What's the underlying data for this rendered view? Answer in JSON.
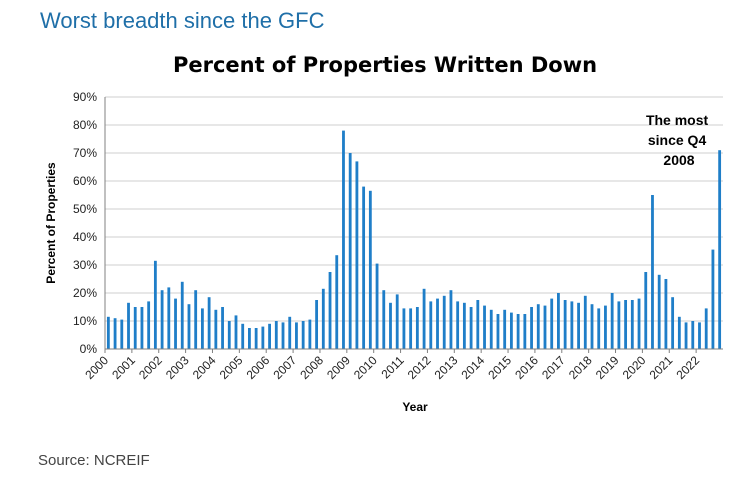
{
  "headline": "Worst breadth since the GFC",
  "source": "Source: NCREIF",
  "chart_data": {
    "type": "bar",
    "title": "Percent of Properties Written Down",
    "xlabel": "Year",
    "ylabel": "Percent of Properties",
    "ylim": [
      0,
      90
    ],
    "y_ticks": [
      "0%",
      "10%",
      "20%",
      "30%",
      "40%",
      "50%",
      "60%",
      "70%",
      "80%",
      "90%"
    ],
    "x_tick_labels": [
      "2000",
      "2001",
      "2002",
      "2003",
      "2004",
      "2005",
      "2006",
      "2007",
      "2008",
      "2009",
      "2010",
      "2011",
      "2012",
      "2013",
      "2014",
      "2015",
      "2016",
      "2017",
      "2018",
      "2019",
      "2020",
      "2021",
      "2022"
    ],
    "grid": true,
    "bar_color": "#1f7ec8",
    "annotation": [
      "The most",
      "since Q4",
      "2008"
    ],
    "categories": [
      "2000 Q1",
      "2000 Q2",
      "2000 Q3",
      "2000 Q4",
      "2001 Q1",
      "2001 Q2",
      "2001 Q3",
      "2001 Q4",
      "2002 Q1",
      "2002 Q2",
      "2002 Q3",
      "2002 Q4",
      "2003 Q1",
      "2003 Q2",
      "2003 Q3",
      "2003 Q4",
      "2004 Q1",
      "2004 Q2",
      "2004 Q3",
      "2004 Q4",
      "2005 Q1",
      "2005 Q2",
      "2005 Q3",
      "2005 Q4",
      "2006 Q1",
      "2006 Q2",
      "2006 Q3",
      "2006 Q4",
      "2007 Q1",
      "2007 Q2",
      "2007 Q3",
      "2007 Q4",
      "2008 Q1",
      "2008 Q2",
      "2008 Q3",
      "2008 Q4",
      "2009 Q1",
      "2009 Q2",
      "2009 Q3",
      "2009 Q4",
      "2010 Q1",
      "2010 Q2",
      "2010 Q3",
      "2010 Q4",
      "2011 Q1",
      "2011 Q2",
      "2011 Q3",
      "2011 Q4",
      "2012 Q1",
      "2012 Q2",
      "2012 Q3",
      "2012 Q4",
      "2013 Q1",
      "2013 Q2",
      "2013 Q3",
      "2013 Q4",
      "2014 Q1",
      "2014 Q2",
      "2014 Q3",
      "2014 Q4",
      "2015 Q1",
      "2015 Q2",
      "2015 Q3",
      "2015 Q4",
      "2016 Q1",
      "2016 Q2",
      "2016 Q3",
      "2016 Q4",
      "2017 Q1",
      "2017 Q2",
      "2017 Q3",
      "2017 Q4",
      "2018 Q1",
      "2018 Q2",
      "2018 Q3",
      "2018 Q4",
      "2019 Q1",
      "2019 Q2",
      "2019 Q3",
      "2019 Q4",
      "2020 Q1",
      "2020 Q2",
      "2020 Q3",
      "2020 Q4",
      "2021 Q1",
      "2021 Q2",
      "2021 Q3",
      "2021 Q4",
      "2022 Q1",
      "2022 Q2",
      "2022 Q3",
      "2022 Q4"
    ],
    "values": [
      11.5,
      11,
      10.5,
      16.5,
      15,
      15,
      17,
      31.5,
      21,
      22,
      18,
      24,
      16,
      21,
      14.5,
      18.5,
      14,
      15,
      10,
      12,
      9,
      7.5,
      7.5,
      8,
      9,
      10,
      9.5,
      11.5,
      9.5,
      10,
      10.5,
      17.5,
      21.5,
      27.5,
      33.5,
      78,
      70,
      67,
      58,
      56.5,
      30.5,
      21,
      16.5,
      19.5,
      14.5,
      14.5,
      15,
      21.5,
      17,
      18,
      19,
      21,
      17,
      16.5,
      15,
      17.5,
      15.5,
      14,
      12.5,
      14,
      13,
      12.5,
      12.5,
      15,
      16,
      15.5,
      18,
      20,
      17.5,
      17,
      16.5,
      19,
      16,
      14.5,
      15.5,
      20,
      17,
      17.5,
      17.5,
      18,
      27.5,
      55,
      26.5,
      25,
      18.5,
      11.5,
      9.5,
      10,
      9.5,
      14.5,
      35.5,
      71
    ]
  }
}
